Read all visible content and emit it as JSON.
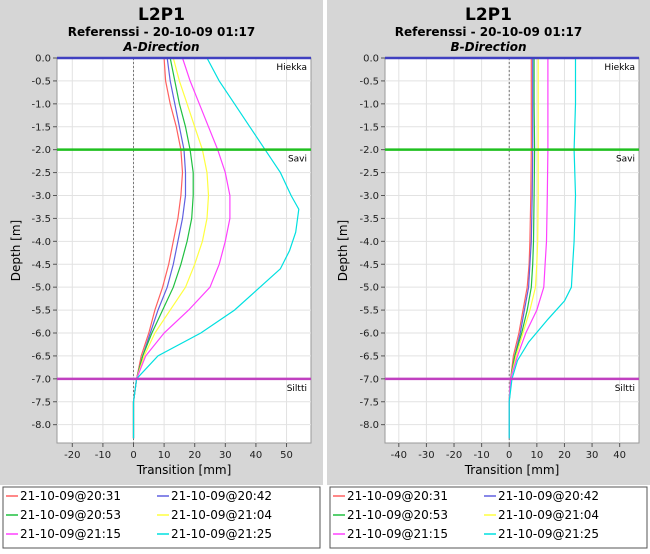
{
  "chart_data": [
    {
      "type": "line",
      "title": "L2P1",
      "subtitle": "Referenssi -   20-10-09 01:17",
      "direction": "A-Direction",
      "xlabel": "Transition [mm]",
      "ylabel": "Depth [m]",
      "xlim": [
        -25,
        58
      ],
      "ylim": [
        -8.4,
        0.0
      ],
      "xticks": [
        -20,
        -10,
        0,
        10,
        20,
        30,
        40,
        50
      ],
      "yticks": [
        0.0,
        -0.5,
        -1.0,
        -1.5,
        -2.0,
        -2.5,
        -3.0,
        -3.5,
        -4.0,
        -4.5,
        -5.0,
        -5.5,
        -6.0,
        -6.5,
        -7.0,
        -7.5,
        -8.0
      ],
      "grid": true,
      "layers": [
        {
          "depth": 0.0,
          "label": "Hiekka",
          "color": "#4040c0"
        },
        {
          "depth": -2.0,
          "label": "Savi",
          "color": "#20c020"
        },
        {
          "depth": -7.0,
          "label": "Siltti",
          "color": "#c040c0"
        }
      ],
      "series": [
        {
          "name": "21-10-09@20:31",
          "color": "#ff6060",
          "points": [
            [
              10,
              0
            ],
            [
              10.5,
              -0.5
            ],
            [
              12,
              -1.0
            ],
            [
              14,
              -1.5
            ],
            [
              15.5,
              -2.0
            ],
            [
              16,
              -2.5
            ],
            [
              15.5,
              -3.0
            ],
            [
              14.5,
              -3.5
            ],
            [
              13,
              -4.0
            ],
            [
              11.5,
              -4.5
            ],
            [
              9.5,
              -5.0
            ],
            [
              7,
              -5.5
            ],
            [
              5,
              -6.0
            ],
            [
              2.5,
              -6.5
            ],
            [
              1,
              -7.0
            ],
            [
              0,
              -7.5
            ],
            [
              0,
              -8.0
            ],
            [
              0,
              -8.3
            ]
          ]
        },
        {
          "name": "21-10-09@20:42",
          "color": "#6060e0",
          "points": [
            [
              11,
              0
            ],
            [
              12,
              -0.5
            ],
            [
              13.5,
              -1.0
            ],
            [
              15,
              -1.5
            ],
            [
              16.5,
              -2.0
            ],
            [
              17,
              -2.5
            ],
            [
              17,
              -3.0
            ],
            [
              16,
              -3.5
            ],
            [
              14.5,
              -4.0
            ],
            [
              13,
              -4.5
            ],
            [
              11,
              -5.0
            ],
            [
              8,
              -5.5
            ],
            [
              5.5,
              -6.0
            ],
            [
              3,
              -6.5
            ],
            [
              1,
              -7.0
            ],
            [
              0,
              -7.5
            ],
            [
              0,
              -8.0
            ],
            [
              0,
              -8.3
            ]
          ]
        },
        {
          "name": "21-10-09@20:53",
          "color": "#20c040",
          "points": [
            [
              12,
              0
            ],
            [
              13.5,
              -0.5
            ],
            [
              15,
              -1.0
            ],
            [
              17,
              -1.5
            ],
            [
              18.5,
              -2.0
            ],
            [
              19.5,
              -2.5
            ],
            [
              19.5,
              -3.0
            ],
            [
              19,
              -3.5
            ],
            [
              17.5,
              -4.0
            ],
            [
              15.5,
              -4.5
            ],
            [
              13,
              -5.0
            ],
            [
              9.5,
              -5.5
            ],
            [
              6,
              -6.0
            ],
            [
              3,
              -6.5
            ],
            [
              1,
              -7.0
            ],
            [
              0,
              -7.5
            ],
            [
              0,
              -8.0
            ],
            [
              0,
              -8.3
            ]
          ]
        },
        {
          "name": "21-10-09@21:04",
          "color": "#ffff40",
          "points": [
            [
              13,
              0
            ],
            [
              15,
              -0.5
            ],
            [
              17.5,
              -1.0
            ],
            [
              20,
              -1.5
            ],
            [
              22.5,
              -2.0
            ],
            [
              24,
              -2.5
            ],
            [
              24.5,
              -3.0
            ],
            [
              24,
              -3.5
            ],
            [
              22.5,
              -4.0
            ],
            [
              20,
              -4.5
            ],
            [
              17,
              -5.0
            ],
            [
              12,
              -5.5
            ],
            [
              7,
              -6.0
            ],
            [
              3.5,
              -6.5
            ],
            [
              1,
              -7.0
            ],
            [
              0,
              -7.5
            ],
            [
              0,
              -8.0
            ],
            [
              0,
              -8.3
            ]
          ]
        },
        {
          "name": "21-10-09@21:15",
          "color": "#ff40ff",
          "points": [
            [
              16,
              0
            ],
            [
              18.5,
              -0.5
            ],
            [
              21.5,
              -1.0
            ],
            [
              24.5,
              -1.5
            ],
            [
              27.5,
              -2.0
            ],
            [
              30,
              -2.5
            ],
            [
              31.5,
              -3.0
            ],
            [
              31.5,
              -3.5
            ],
            [
              30,
              -4.0
            ],
            [
              28,
              -4.5
            ],
            [
              25,
              -5.0
            ],
            [
              18,
              -5.5
            ],
            [
              10,
              -6.0
            ],
            [
              4,
              -6.5
            ],
            [
              1,
              -7.0
            ],
            [
              0,
              -7.5
            ],
            [
              0,
              -8.0
            ],
            [
              0,
              -8.3
            ]
          ]
        },
        {
          "name": "21-10-09@21:25",
          "color": "#00e0e0",
          "points": [
            [
              24,
              0
            ],
            [
              28,
              -0.5
            ],
            [
              33,
              -1.0
            ],
            [
              38,
              -1.5
            ],
            [
              43,
              -2.0
            ],
            [
              48,
              -2.5
            ],
            [
              51.5,
              -3.0
            ],
            [
              54,
              -3.3
            ],
            [
              53,
              -3.8
            ],
            [
              51,
              -4.2
            ],
            [
              48,
              -4.6
            ],
            [
              43,
              -4.9
            ],
            [
              33,
              -5.5
            ],
            [
              22,
              -6.0
            ],
            [
              8,
              -6.5
            ],
            [
              1,
              -7.0
            ],
            [
              0,
              -7.5
            ],
            [
              0,
              -8.0
            ],
            [
              0,
              -8.3
            ]
          ]
        }
      ]
    },
    {
      "type": "line",
      "title": "L2P1",
      "subtitle": "Referenssi -   20-10-09 01:17",
      "direction": "B-Direction",
      "xlabel": "Transition [mm]",
      "ylabel": "Depth [m]",
      "xlim": [
        -45,
        47
      ],
      "ylim": [
        -8.4,
        0.0
      ],
      "xticks": [
        -40,
        -30,
        -20,
        -10,
        0,
        10,
        20,
        30,
        40
      ],
      "yticks": [
        0.0,
        -0.5,
        -1.0,
        -1.5,
        -2.0,
        -2.5,
        -3.0,
        -3.5,
        -4.0,
        -4.5,
        -5.0,
        -5.5,
        -6.0,
        -6.5,
        -7.0,
        -7.5,
        -8.0
      ],
      "grid": true,
      "layers": [
        {
          "depth": 0.0,
          "label": "Hiekka",
          "color": "#4040c0"
        },
        {
          "depth": -2.0,
          "label": "Savi",
          "color": "#20c020"
        },
        {
          "depth": -7.0,
          "label": "Siltti",
          "color": "#c040c0"
        }
      ],
      "series": [
        {
          "name": "21-10-09@20:31",
          "color": "#ff6060",
          "points": [
            [
              8,
              0
            ],
            [
              8,
              -1.0
            ],
            [
              8,
              -2.0
            ],
            [
              7.8,
              -3.0
            ],
            [
              7.5,
              -4.0
            ],
            [
              7.2,
              -4.5
            ],
            [
              6.5,
              -5.0
            ],
            [
              5,
              -5.5
            ],
            [
              3.5,
              -6.0
            ],
            [
              1.5,
              -6.5
            ],
            [
              0.5,
              -7.0
            ],
            [
              0,
              -7.5
            ],
            [
              0,
              -8.0
            ],
            [
              0,
              -8.3
            ]
          ]
        },
        {
          "name": "21-10-09@20:42",
          "color": "#6060e0",
          "points": [
            [
              8.5,
              0
            ],
            [
              8.5,
              -1.0
            ],
            [
              8.5,
              -2.0
            ],
            [
              8.3,
              -3.0
            ],
            [
              8,
              -4.0
            ],
            [
              7.5,
              -4.5
            ],
            [
              7,
              -5.0
            ],
            [
              5.5,
              -5.5
            ],
            [
              4,
              -6.0
            ],
            [
              2,
              -6.5
            ],
            [
              0.5,
              -7.0
            ],
            [
              0,
              -7.5
            ],
            [
              0,
              -8.0
            ],
            [
              0,
              -8.3
            ]
          ]
        },
        {
          "name": "21-10-09@20:53",
          "color": "#20c040",
          "points": [
            [
              9,
              0
            ],
            [
              9,
              -1.0
            ],
            [
              9.2,
              -2.0
            ],
            [
              9,
              -3.0
            ],
            [
              8.8,
              -4.0
            ],
            [
              8.5,
              -4.5
            ],
            [
              8,
              -5.0
            ],
            [
              6.5,
              -5.5
            ],
            [
              4.5,
              -6.0
            ],
            [
              2,
              -6.5
            ],
            [
              0.5,
              -7.0
            ],
            [
              0,
              -7.5
            ],
            [
              0,
              -8.0
            ],
            [
              0,
              -8.3
            ]
          ]
        },
        {
          "name": "21-10-09@21:04",
          "color": "#ffff40",
          "points": [
            [
              10.5,
              0
            ],
            [
              10.5,
              -1.0
            ],
            [
              10.5,
              -2.0
            ],
            [
              10.5,
              -3.0
            ],
            [
              10.3,
              -4.0
            ],
            [
              10,
              -4.5
            ],
            [
              9.5,
              -5.0
            ],
            [
              7.5,
              -5.5
            ],
            [
              5,
              -6.0
            ],
            [
              2.5,
              -6.5
            ],
            [
              0.5,
              -7.0
            ],
            [
              0,
              -7.5
            ],
            [
              0,
              -8.0
            ],
            [
              0,
              -8.3
            ]
          ]
        },
        {
          "name": "21-10-09@21:15",
          "color": "#ff40ff",
          "points": [
            [
              14,
              0
            ],
            [
              14,
              -1.0
            ],
            [
              14,
              -2.0
            ],
            [
              13.8,
              -3.0
            ],
            [
              13.5,
              -4.0
            ],
            [
              13,
              -4.5
            ],
            [
              12.5,
              -5.0
            ],
            [
              10,
              -5.5
            ],
            [
              6,
              -6.0
            ],
            [
              3,
              -6.5
            ],
            [
              0.5,
              -7.0
            ],
            [
              0,
              -7.5
            ],
            [
              0,
              -8.0
            ],
            [
              0,
              -8.3
            ]
          ]
        },
        {
          "name": "21-10-09@21:25",
          "color": "#00e0e0",
          "points": [
            [
              24,
              0
            ],
            [
              24,
              -1.0
            ],
            [
              23.5,
              -2.0
            ],
            [
              24,
              -3.0
            ],
            [
              23.5,
              -4.0
            ],
            [
              23,
              -4.5
            ],
            [
              22.5,
              -5.0
            ],
            [
              20,
              -5.3
            ],
            [
              14,
              -5.7
            ],
            [
              7,
              -6.2
            ],
            [
              3,
              -6.6
            ],
            [
              1,
              -7.0
            ],
            [
              0,
              -7.5
            ],
            [
              0,
              -8.0
            ],
            [
              0,
              -8.3
            ]
          ]
        }
      ]
    }
  ]
}
